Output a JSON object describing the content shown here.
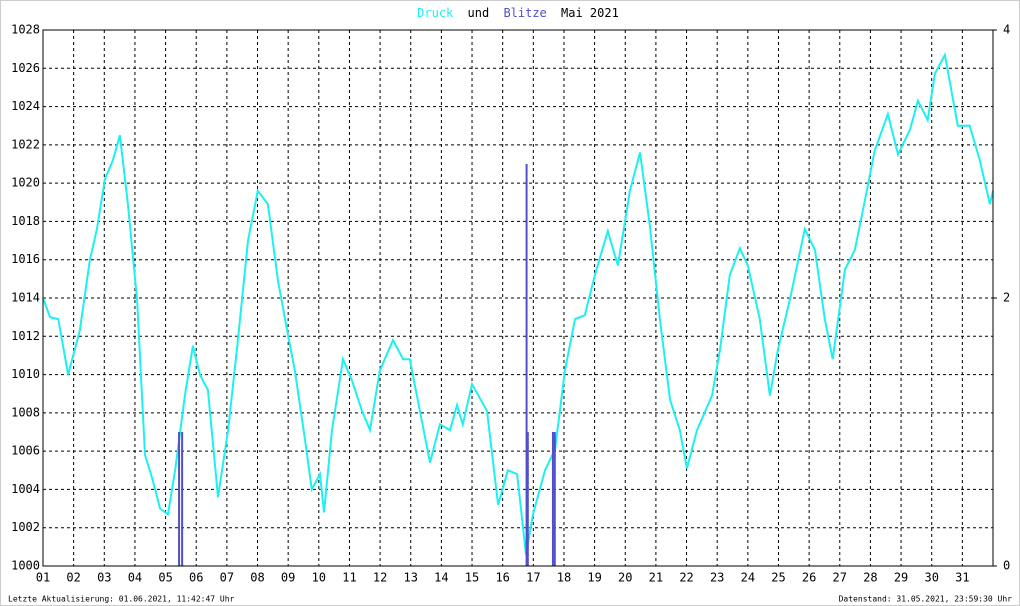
{
  "chart_data": {
    "type": "line-bar",
    "title_connector": "und",
    "title_period": "Mai 2021",
    "footer_left": "Letzte Aktualisierung: 01.06.2021, 11:42:47 Uhr",
    "footer_right": "Datenstand: 31.05.2021, 23:59:30 Uhr",
    "xlim": [
      0,
      31
    ],
    "xticks": [
      {
        "value": 0,
        "label": "01"
      },
      {
        "value": 1,
        "label": "02"
      },
      {
        "value": 2,
        "label": "03"
      },
      {
        "value": 3,
        "label": "04"
      },
      {
        "value": 4,
        "label": "05"
      },
      {
        "value": 5,
        "label": "06"
      },
      {
        "value": 6,
        "label": "07"
      },
      {
        "value": 7,
        "label": "08"
      },
      {
        "value": 8,
        "label": "09"
      },
      {
        "value": 9,
        "label": "10"
      },
      {
        "value": 10,
        "label": "11"
      },
      {
        "value": 11,
        "label": "12"
      },
      {
        "value": 12,
        "label": "13"
      },
      {
        "value": 13,
        "label": "14"
      },
      {
        "value": 14,
        "label": "15"
      },
      {
        "value": 15,
        "label": "16"
      },
      {
        "value": 16,
        "label": "17"
      },
      {
        "value": 17,
        "label": "18"
      },
      {
        "value": 18,
        "label": "19"
      },
      {
        "value": 19,
        "label": "20"
      },
      {
        "value": 20,
        "label": "21"
      },
      {
        "value": 21,
        "label": "22"
      },
      {
        "value": 22,
        "label": "23"
      },
      {
        "value": 23,
        "label": "24"
      },
      {
        "value": 24,
        "label": "25"
      },
      {
        "value": 25,
        "label": "26"
      },
      {
        "value": 26,
        "label": "27"
      },
      {
        "value": 27,
        "label": "28"
      },
      {
        "value": 28,
        "label": "29"
      },
      {
        "value": 29,
        "label": "30"
      },
      {
        "value": 30,
        "label": "31"
      }
    ],
    "ylim": [
      1000,
      1028
    ],
    "yticks": [
      1000,
      1002,
      1004,
      1006,
      1008,
      1010,
      1012,
      1014,
      1016,
      1018,
      1020,
      1022,
      1024,
      1026,
      1028
    ],
    "y2lim": [
      0,
      4
    ],
    "y2ticks": [
      0,
      2,
      4
    ],
    "grid": true,
    "series": [
      {
        "name": "Druck",
        "color": "#1ef0f0",
        "kind": "line",
        "x": [
          0,
          0.23,
          0.5,
          0.82,
          1.2,
          1.53,
          1.76,
          2.02,
          2.28,
          2.51,
          2.77,
          3.07,
          3.33,
          3.56,
          3.82,
          4.08,
          4.31,
          4.63,
          4.89,
          5.12,
          5.38,
          5.71,
          6.04,
          6.36,
          6.69,
          7.01,
          7.34,
          7.67,
          7.99,
          8.22,
          8.55,
          8.77,
          9.04,
          9.17,
          9.43,
          9.79,
          10.08,
          10.41,
          10.67,
          10.99,
          11.42,
          11.75,
          11.97,
          12.3,
          12.63,
          12.95,
          13.28,
          13.51,
          13.7,
          14.0,
          14.49,
          14.85,
          15.17,
          15.47,
          15.76,
          15.99,
          16.38,
          16.71,
          17.03,
          17.36,
          17.68,
          18.01,
          18.43,
          18.76,
          19.15,
          19.48,
          19.8,
          20.13,
          20.46,
          20.78,
          21.01,
          21.34,
          21.83,
          22.09,
          22.41,
          22.74,
          23.0,
          23.39,
          23.72,
          23.98,
          24.37,
          24.86,
          25.19,
          25.51,
          25.77,
          26.17,
          26.49,
          26.82,
          27.14,
          27.57,
          27.9,
          28.29,
          28.55,
          28.87,
          29.1,
          29.43,
          29.85,
          30.24,
          30.57,
          30.9,
          31.0
        ],
        "values": [
          1014.0,
          1013.0,
          1012.9,
          1010.0,
          1012.3,
          1016.0,
          1017.6,
          1020.2,
          1021.2,
          1022.5,
          1018.9,
          1013.9,
          1005.8,
          1004.6,
          1003.0,
          1002.7,
          1005.0,
          1008.9,
          1011.5,
          1010.0,
          1009.2,
          1003.6,
          1007.1,
          1011.8,
          1017.0,
          1019.6,
          1018.9,
          1014.9,
          1012.1,
          1010.2,
          1006.6,
          1004.0,
          1004.8,
          1002.8,
          1007.1,
          1010.8,
          1009.7,
          1008.1,
          1007.1,
          1010.2,
          1011.8,
          1010.8,
          1010.8,
          1008.1,
          1005.4,
          1007.4,
          1007.1,
          1008.4,
          1007.4,
          1009.5,
          1008.1,
          1003.2,
          1005.0,
          1004.8,
          1000.6,
          1002.7,
          1005.0,
          1006.1,
          1010.2,
          1012.9,
          1013.1,
          1015.2,
          1017.5,
          1015.7,
          1019.6,
          1021.6,
          1017.8,
          1012.9,
          1008.7,
          1007.1,
          1005.1,
          1007.1,
          1008.9,
          1011.3,
          1015.2,
          1016.6,
          1015.7,
          1012.9,
          1008.9,
          1011.3,
          1013.9,
          1017.6,
          1016.5,
          1012.9,
          1010.8,
          1015.5,
          1016.5,
          1019.1,
          1021.7,
          1023.6,
          1021.5,
          1022.8,
          1024.3,
          1023.3,
          1025.7,
          1026.7,
          1023.0,
          1023.0,
          1021.2,
          1018.9,
          1019.6
        ]
      },
      {
        "name": "Blitze",
        "color": "#5050c8",
        "kind": "bar",
        "axis": "y2",
        "x": [
          4.44,
          4.54,
          15.78,
          15.82,
          16.64,
          16.7
        ],
        "values": [
          1,
          1,
          3,
          1,
          1,
          1
        ]
      }
    ]
  }
}
